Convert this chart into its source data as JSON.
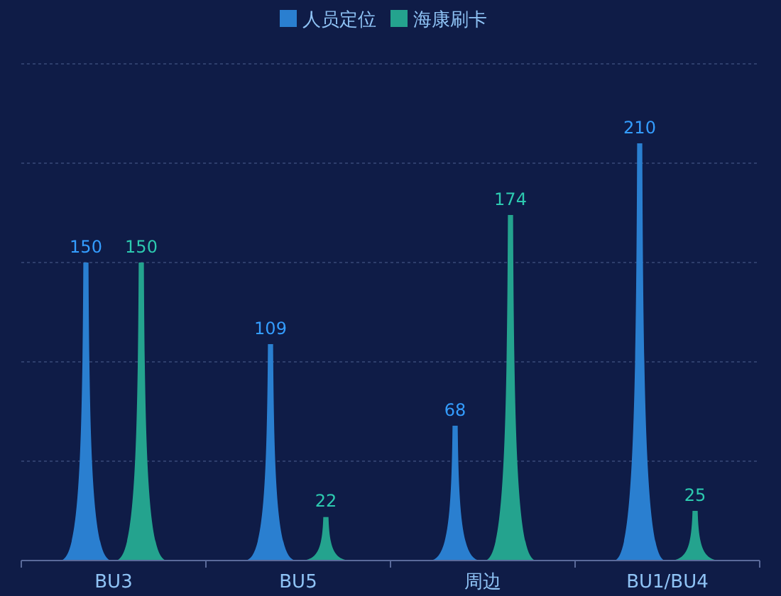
{
  "chart_data": {
    "type": "bar",
    "categories": [
      "BU3",
      "BU5",
      "周边",
      "BU1/BU4"
    ],
    "series": [
      {
        "name": "人员定位",
        "color": "#2a7fd0",
        "values": [
          150,
          109,
          68,
          210
        ]
      },
      {
        "name": "海康刷卡",
        "color": "#24a38e",
        "values": [
          150,
          22,
          174,
          25
        ]
      }
    ],
    "ylim": [
      0,
      250
    ],
    "yticks": [
      {
        "value": 0,
        "label": null
      },
      {
        "value": 50,
        "label": null
      },
      {
        "value": 100,
        "label": null
      },
      {
        "value": 150,
        "label": null
      },
      {
        "value": 200,
        "label": null
      },
      {
        "value": 250,
        "label": null
      }
    ],
    "tick_labels": "x",
    "grid": "y",
    "legend": "top",
    "data_labels": true
  }
}
